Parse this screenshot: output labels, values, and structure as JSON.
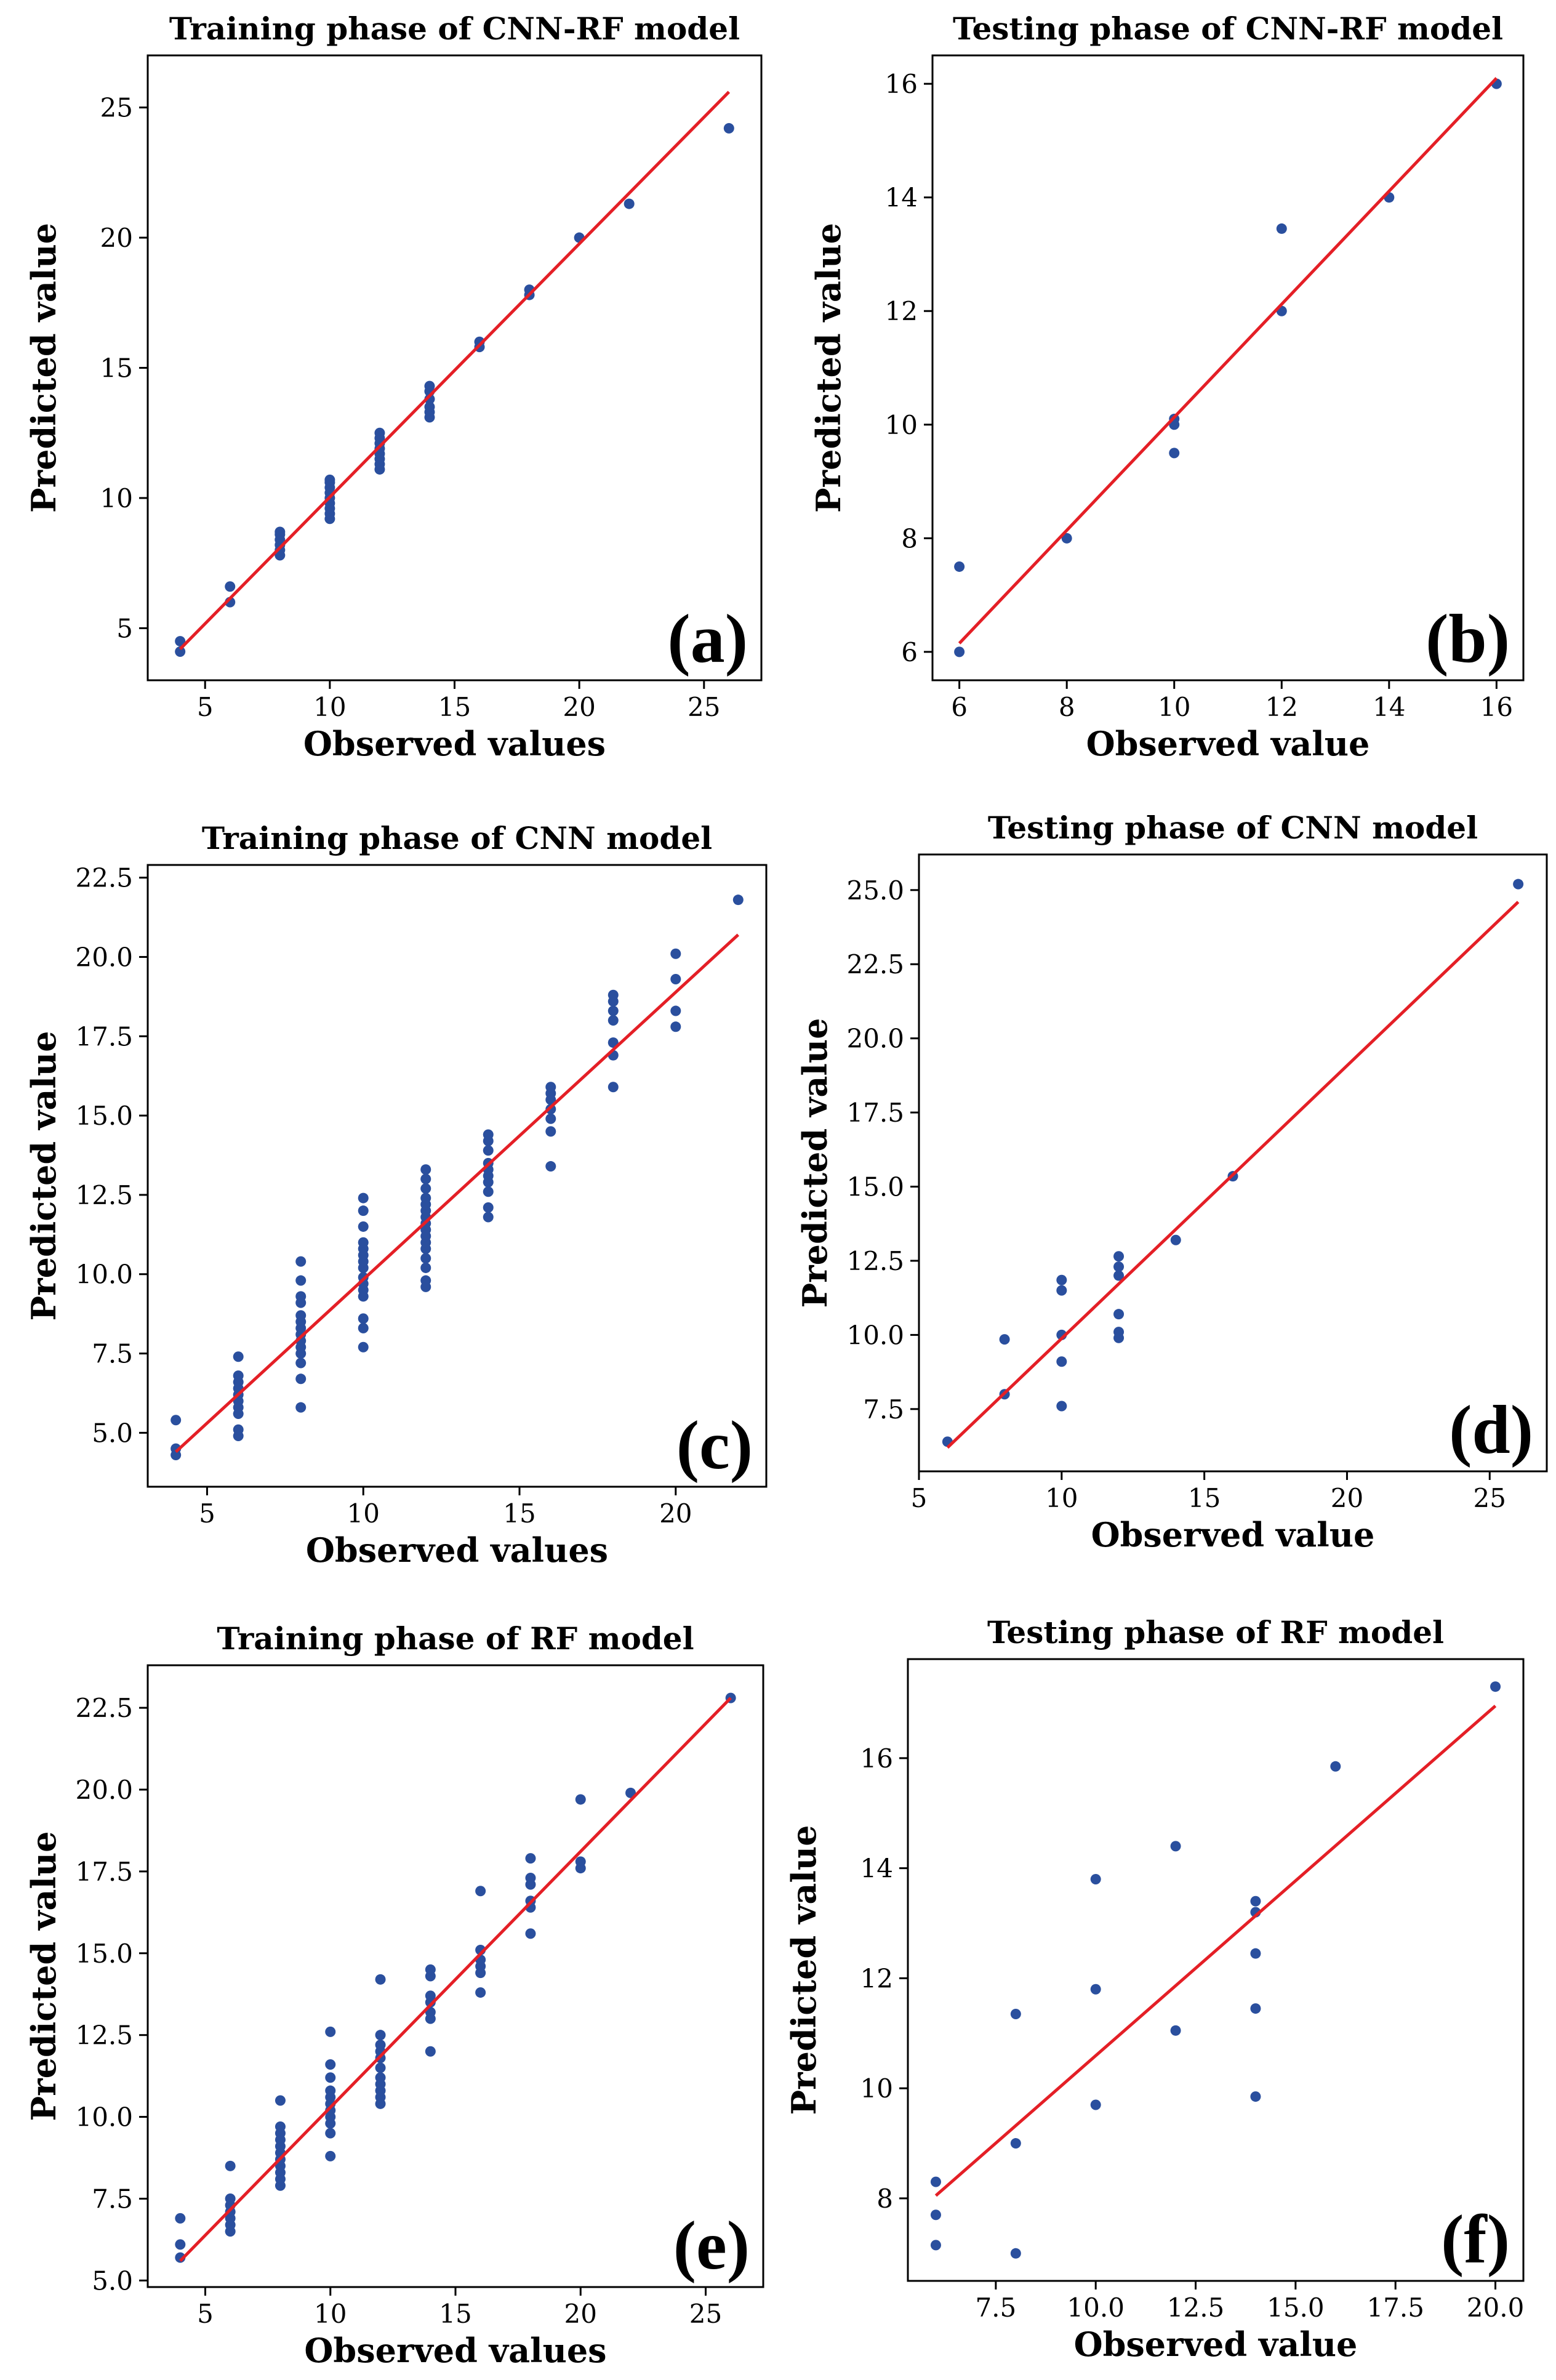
{
  "colors": {
    "point": "#2a4f9e",
    "fit_line": "#e41f26",
    "axes": "#000000"
  },
  "chart_data": [
    {
      "type": "scatter",
      "title": "Training phase of CNN-RF model",
      "xlabel": "Observed values",
      "ylabel": "Predicted value",
      "panel_label": "(a)",
      "xlim": [
        2.7,
        27.3
      ],
      "ylim": [
        3.0,
        27.0
      ],
      "xticks": [
        {
          "v": 5,
          "label": "5"
        },
        {
          "v": 10,
          "label": "10"
        },
        {
          "v": 15,
          "label": "15"
        },
        {
          "v": 20,
          "label": "20"
        },
        {
          "v": 25,
          "label": "25"
        }
      ],
      "yticks": [
        {
          "v": 5,
          "label": "5"
        },
        {
          "v": 10,
          "label": "10"
        },
        {
          "v": 15,
          "label": "15"
        },
        {
          "v": 20,
          "label": "20"
        },
        {
          "v": 25,
          "label": "25"
        }
      ],
      "fit_line": [
        [
          4,
          4.2
        ],
        [
          26,
          25.6
        ]
      ],
      "points": [
        [
          4,
          4.1
        ],
        [
          4,
          4.5
        ],
        [
          6,
          6.0
        ],
        [
          6,
          6.6
        ],
        [
          8,
          7.8
        ],
        [
          8,
          8.0
        ],
        [
          8,
          8.2
        ],
        [
          8,
          8.4
        ],
        [
          8,
          8.6
        ],
        [
          8,
          8.7
        ],
        [
          10,
          9.2
        ],
        [
          10,
          9.4
        ],
        [
          10,
          9.6
        ],
        [
          10,
          9.8
        ],
        [
          10,
          10.0
        ],
        [
          10,
          10.2
        ],
        [
          10,
          10.4
        ],
        [
          10,
          10.6
        ],
        [
          10,
          10.7
        ],
        [
          12,
          11.1
        ],
        [
          12,
          11.3
        ],
        [
          12,
          11.5
        ],
        [
          12,
          11.7
        ],
        [
          12,
          11.9
        ],
        [
          12,
          12.1
        ],
        [
          12,
          12.3
        ],
        [
          12,
          12.5
        ],
        [
          14,
          13.1
        ],
        [
          14,
          13.3
        ],
        [
          14,
          13.5
        ],
        [
          14,
          13.8
        ],
        [
          14,
          14.1
        ],
        [
          14,
          14.3
        ],
        [
          16,
          15.8
        ],
        [
          16,
          16.0
        ],
        [
          18,
          17.8
        ],
        [
          18,
          18.0
        ],
        [
          20,
          20.0
        ],
        [
          22,
          21.3
        ],
        [
          26,
          24.2
        ]
      ]
    },
    {
      "type": "scatter",
      "title": "Testing phase of CNN-RF model",
      "xlabel": "Observed value",
      "ylabel": "Predicted value",
      "panel_label": "(b)",
      "xlim": [
        5.5,
        16.5
      ],
      "ylim": [
        5.5,
        16.5
      ],
      "xticks": [
        {
          "v": 6,
          "label": "6"
        },
        {
          "v": 8,
          "label": "8"
        },
        {
          "v": 10,
          "label": "10"
        },
        {
          "v": 12,
          "label": "12"
        },
        {
          "v": 14,
          "label": "14"
        },
        {
          "v": 16,
          "label": "16"
        }
      ],
      "yticks": [
        {
          "v": 6,
          "label": "6"
        },
        {
          "v": 8,
          "label": "8"
        },
        {
          "v": 10,
          "label": "10"
        },
        {
          "v": 12,
          "label": "12"
        },
        {
          "v": 14,
          "label": "14"
        },
        {
          "v": 16,
          "label": "16"
        }
      ],
      "fit_line": [
        [
          6,
          6.15
        ],
        [
          16,
          16.1
        ]
      ],
      "points": [
        [
          6,
          6.0
        ],
        [
          6,
          7.5
        ],
        [
          8,
          8.0
        ],
        [
          10,
          9.5
        ],
        [
          10,
          10.0
        ],
        [
          10,
          10.1
        ],
        [
          12,
          12.0
        ],
        [
          12,
          13.45
        ],
        [
          14,
          14.0
        ],
        [
          16,
          16.0
        ]
      ]
    },
    {
      "type": "scatter",
      "title": "Training phase of CNN model",
      "xlabel": "Observed values",
      "ylabel": "Predicted value",
      "panel_label": "(c)",
      "xlim": [
        3.1,
        22.9
      ],
      "ylim": [
        3.3,
        22.9
      ],
      "xticks": [
        {
          "v": 5,
          "label": "5"
        },
        {
          "v": 10,
          "label": "10"
        },
        {
          "v": 15,
          "label": "15"
        },
        {
          "v": 20,
          "label": "20"
        }
      ],
      "yticks": [
        {
          "v": 5,
          "label": "5.0"
        },
        {
          "v": 7.5,
          "label": "7.5"
        },
        {
          "v": 10,
          "label": "10.0"
        },
        {
          "v": 12.5,
          "label": "12.5"
        },
        {
          "v": 15,
          "label": "15.0"
        },
        {
          "v": 17.5,
          "label": "17.5"
        },
        {
          "v": 20,
          "label": "20.0"
        },
        {
          "v": 22.5,
          "label": "22.5"
        }
      ],
      "fit_line": [
        [
          4,
          4.4
        ],
        [
          22,
          20.7
        ]
      ],
      "points": [
        [
          4,
          4.3
        ],
        [
          4,
          4.5
        ],
        [
          4,
          5.4
        ],
        [
          6,
          4.9
        ],
        [
          6,
          5.1
        ],
        [
          6,
          5.6
        ],
        [
          6,
          5.8
        ],
        [
          6,
          6.0
        ],
        [
          6,
          6.2
        ],
        [
          6,
          6.4
        ],
        [
          6,
          6.6
        ],
        [
          6,
          6.8
        ],
        [
          6,
          7.4
        ],
        [
          8,
          5.8
        ],
        [
          8,
          6.7
        ],
        [
          8,
          7.2
        ],
        [
          8,
          7.5
        ],
        [
          8,
          7.7
        ],
        [
          8,
          7.9
        ],
        [
          8,
          8.1
        ],
        [
          8,
          8.3
        ],
        [
          8,
          8.5
        ],
        [
          8,
          8.7
        ],
        [
          8,
          9.1
        ],
        [
          8,
          9.3
        ],
        [
          8,
          9.8
        ],
        [
          8,
          10.4
        ],
        [
          10,
          7.7
        ],
        [
          10,
          8.3
        ],
        [
          10,
          8.6
        ],
        [
          10,
          9.3
        ],
        [
          10,
          9.5
        ],
        [
          10,
          9.7
        ],
        [
          10,
          9.9
        ],
        [
          10,
          10.2
        ],
        [
          10,
          10.4
        ],
        [
          10,
          10.6
        ],
        [
          10,
          10.8
        ],
        [
          10,
          11.0
        ],
        [
          10,
          11.5
        ],
        [
          10,
          12.0
        ],
        [
          10,
          12.4
        ],
        [
          12,
          9.6
        ],
        [
          12,
          9.8
        ],
        [
          12,
          10.2
        ],
        [
          12,
          10.5
        ],
        [
          12,
          10.8
        ],
        [
          12,
          11.0
        ],
        [
          12,
          11.2
        ],
        [
          12,
          11.4
        ],
        [
          12,
          11.6
        ],
        [
          12,
          11.8
        ],
        [
          12,
          12.0
        ],
        [
          12,
          12.2
        ],
        [
          12,
          12.4
        ],
        [
          12,
          12.7
        ],
        [
          12,
          13.0
        ],
        [
          12,
          13.3
        ],
        [
          14,
          11.8
        ],
        [
          14,
          12.1
        ],
        [
          14,
          12.6
        ],
        [
          14,
          12.9
        ],
        [
          14,
          13.1
        ],
        [
          14,
          13.3
        ],
        [
          14,
          13.5
        ],
        [
          14,
          13.9
        ],
        [
          14,
          14.2
        ],
        [
          14,
          14.4
        ],
        [
          16,
          13.4
        ],
        [
          16,
          14.5
        ],
        [
          16,
          14.9
        ],
        [
          16,
          15.2
        ],
        [
          16,
          15.5
        ],
        [
          16,
          15.7
        ],
        [
          16,
          15.9
        ],
        [
          18,
          15.9
        ],
        [
          18,
          16.9
        ],
        [
          18,
          17.3
        ],
        [
          18,
          18.0
        ],
        [
          18,
          18.3
        ],
        [
          18,
          18.6
        ],
        [
          18,
          18.8
        ],
        [
          20,
          17.8
        ],
        [
          20,
          18.3
        ],
        [
          20,
          19.3
        ],
        [
          20,
          20.1
        ],
        [
          22,
          21.8
        ]
      ]
    },
    {
      "type": "scatter",
      "title": "Testing phase of CNN model",
      "xlabel": "Observed value",
      "ylabel": "Predicted value",
      "panel_label": "(d)",
      "xlim": [
        5.0,
        27.0
      ],
      "ylim": [
        5.4,
        26.2
      ],
      "xticks": [
        {
          "v": 5,
          "label": "5"
        },
        {
          "v": 10,
          "label": "10"
        },
        {
          "v": 15,
          "label": "15"
        },
        {
          "v": 20,
          "label": "20"
        },
        {
          "v": 25,
          "label": "25"
        }
      ],
      "yticks": [
        {
          "v": 7.5,
          "label": "7.5"
        },
        {
          "v": 10,
          "label": "10.0"
        },
        {
          "v": 12.5,
          "label": "12.5"
        },
        {
          "v": 15,
          "label": "15.0"
        },
        {
          "v": 17.5,
          "label": "17.5"
        },
        {
          "v": 20,
          "label": "20.0"
        },
        {
          "v": 22.5,
          "label": "22.5"
        },
        {
          "v": 25,
          "label": "25.0"
        }
      ],
      "fit_line": [
        [
          6,
          6.2
        ],
        [
          26,
          24.6
        ]
      ],
      "points": [
        [
          6,
          6.4
        ],
        [
          8,
          8.0
        ],
        [
          8,
          9.85
        ],
        [
          10,
          7.6
        ],
        [
          10,
          9.1
        ],
        [
          10,
          10.0
        ],
        [
          10,
          11.5
        ],
        [
          10,
          11.85
        ],
        [
          12,
          9.9
        ],
        [
          12,
          10.1
        ],
        [
          12,
          10.7
        ],
        [
          12,
          12.0
        ],
        [
          12,
          12.3
        ],
        [
          12,
          12.65
        ],
        [
          14,
          13.2
        ],
        [
          16,
          15.35
        ],
        [
          26,
          25.2
        ]
      ]
    },
    {
      "type": "scatter",
      "title": "Training phase of RF model",
      "xlabel": "Observed values",
      "ylabel": "Predicted value",
      "panel_label": "(e)",
      "xlim": [
        2.7,
        27.3
      ],
      "ylim": [
        4.8,
        23.8
      ],
      "xticks": [
        {
          "v": 5,
          "label": "5"
        },
        {
          "v": 10,
          "label": "10"
        },
        {
          "v": 15,
          "label": "15"
        },
        {
          "v": 20,
          "label": "20"
        },
        {
          "v": 25,
          "label": "25"
        }
      ],
      "yticks": [
        {
          "v": 5,
          "label": "5.0"
        },
        {
          "v": 7.5,
          "label": "7.5"
        },
        {
          "v": 10,
          "label": "10.0"
        },
        {
          "v": 12.5,
          "label": "12.5"
        },
        {
          "v": 15,
          "label": "15.0"
        },
        {
          "v": 17.5,
          "label": "17.5"
        },
        {
          "v": 20,
          "label": "20.0"
        },
        {
          "v": 22.5,
          "label": "22.5"
        }
      ],
      "fit_line": [
        [
          4,
          5.6
        ],
        [
          26,
          22.8
        ]
      ],
      "points": [
        [
          4,
          5.7
        ],
        [
          4,
          6.1
        ],
        [
          4,
          6.9
        ],
        [
          6,
          6.5
        ],
        [
          6,
          6.7
        ],
        [
          6,
          6.9
        ],
        [
          6,
          7.1
        ],
        [
          6,
          7.3
        ],
        [
          6,
          7.5
        ],
        [
          6,
          8.5
        ],
        [
          8,
          7.9
        ],
        [
          8,
          8.1
        ],
        [
          8,
          8.3
        ],
        [
          8,
          8.5
        ],
        [
          8,
          8.7
        ],
        [
          8,
          8.9
        ],
        [
          8,
          9.1
        ],
        [
          8,
          9.3
        ],
        [
          8,
          9.5
        ],
        [
          8,
          9.7
        ],
        [
          8,
          10.5
        ],
        [
          10,
          8.8
        ],
        [
          10,
          9.5
        ],
        [
          10,
          9.8
        ],
        [
          10,
          10.0
        ],
        [
          10,
          10.2
        ],
        [
          10,
          10.4
        ],
        [
          10,
          10.6
        ],
        [
          10,
          10.8
        ],
        [
          10,
          11.2
        ],
        [
          10,
          11.6
        ],
        [
          10,
          12.6
        ],
        [
          12,
          10.4
        ],
        [
          12,
          10.6
        ],
        [
          12,
          10.8
        ],
        [
          12,
          11.0
        ],
        [
          12,
          11.2
        ],
        [
          12,
          11.5
        ],
        [
          12,
          11.8
        ],
        [
          12,
          12.0
        ],
        [
          12,
          12.2
        ],
        [
          12,
          12.5
        ],
        [
          12,
          14.2
        ],
        [
          14,
          12.0
        ],
        [
          14,
          13.0
        ],
        [
          14,
          13.2
        ],
        [
          14,
          13.5
        ],
        [
          14,
          13.7
        ],
        [
          14,
          14.3
        ],
        [
          14,
          14.5
        ],
        [
          16,
          13.8
        ],
        [
          16,
          14.4
        ],
        [
          16,
          14.6
        ],
        [
          16,
          14.8
        ],
        [
          16,
          15.1
        ],
        [
          16,
          16.9
        ],
        [
          18,
          15.6
        ],
        [
          18,
          16.4
        ],
        [
          18,
          16.6
        ],
        [
          18,
          17.1
        ],
        [
          18,
          17.3
        ],
        [
          18,
          17.9
        ],
        [
          20,
          17.6
        ],
        [
          20,
          17.8
        ],
        [
          20,
          19.7
        ],
        [
          22,
          19.9
        ],
        [
          26,
          22.8
        ]
      ]
    },
    {
      "type": "scatter",
      "title": "Testing phase of RF model",
      "xlabel": "Observed value",
      "ylabel": "Predicted value",
      "panel_label": "(f)",
      "xlim": [
        5.3,
        20.7
      ],
      "ylim": [
        6.5,
        17.8
      ],
      "xticks": [
        {
          "v": 7.5,
          "label": "7.5"
        },
        {
          "v": 10,
          "label": "10.0"
        },
        {
          "v": 12.5,
          "label": "12.5"
        },
        {
          "v": 15,
          "label": "15.0"
        },
        {
          "v": 17.5,
          "label": "17.5"
        },
        {
          "v": 20,
          "label": "20.0"
        }
      ],
      "yticks": [
        {
          "v": 8,
          "label": "8"
        },
        {
          "v": 10,
          "label": "10"
        },
        {
          "v": 12,
          "label": "12"
        },
        {
          "v": 14,
          "label": "14"
        },
        {
          "v": 16,
          "label": "16"
        }
      ],
      "fit_line": [
        [
          6,
          8.05
        ],
        [
          20,
          16.95
        ]
      ],
      "points": [
        [
          6,
          7.15
        ],
        [
          6,
          7.7
        ],
        [
          6,
          8.3
        ],
        [
          8,
          7.0
        ],
        [
          8,
          9.0
        ],
        [
          8,
          11.35
        ],
        [
          10,
          9.7
        ],
        [
          10,
          11.8
        ],
        [
          10,
          13.8
        ],
        [
          12,
          11.05
        ],
        [
          12,
          14.4
        ],
        [
          14,
          9.85
        ],
        [
          14,
          11.45
        ],
        [
          14,
          12.45
        ],
        [
          14,
          13.2
        ],
        [
          14,
          13.4
        ],
        [
          16,
          15.85
        ],
        [
          20,
          17.3
        ]
      ]
    }
  ]
}
